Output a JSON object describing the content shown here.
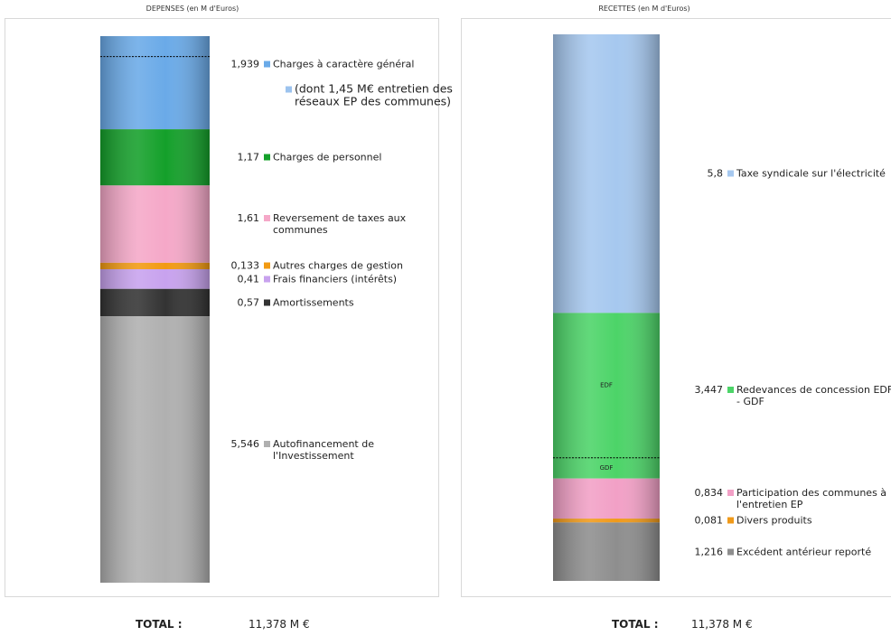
{
  "chart_data": [
    {
      "type": "stacked-bar",
      "title": "DEPENSES (en M d'Euros)",
      "series": [
        {
          "name": "Charges à caractère général",
          "color": "#6aaae8",
          "values": [
            1.939
          ],
          "value_labels": [
            "1,939"
          ],
          "note": "(dont 1,45 M€ entretien des réseaux EP des communes)"
        },
        {
          "name": "Charges de personnel",
          "color": "#14a02a",
          "values": [
            1.17
          ],
          "value_labels": [
            "1,17"
          ]
        },
        {
          "name": "Reversement de taxes aux communes",
          "color": "#f5a8c8",
          "values": [
            1.61
          ],
          "value_labels": [
            "1,61"
          ]
        },
        {
          "name": "Autres charges de gestion",
          "color": "#f29a12",
          "values": [
            0.133
          ],
          "value_labels": [
            "0,133"
          ]
        },
        {
          "name": "Frais financiers (intérêts)",
          "color": "#c8a2ee",
          "values": [
            0.41
          ],
          "value_labels": [
            "0,41"
          ]
        },
        {
          "name": "Amortissements",
          "color": "#333333",
          "values": [
            0.57
          ],
          "value_labels": [
            "0,57"
          ]
        },
        {
          "name": "Autofinancement de l'Investissement",
          "color": "#b0b0b0",
          "values": [
            5.546
          ],
          "value_labels": [
            "5,546"
          ]
        }
      ],
      "total_title": "TOTAL :",
      "total": {
        "value": 11.378,
        "label": "11,378 M €"
      }
    },
    {
      "type": "stacked-bar",
      "title": "RECETTES (en M d'Euros)",
      "series": [
        {
          "name": "Taxe syndicale sur l'électricité",
          "color": "#a6c8ef",
          "values": [
            5.8
          ],
          "value_labels": [
            "5,8"
          ]
        },
        {
          "name": "Redevances de concession EDF - GDF",
          "color": "#4cd468",
          "values": [
            3.447
          ],
          "value_labels": [
            "3,447"
          ],
          "inner_labels": [
            "EDF",
            "GDF"
          ]
        },
        {
          "name": "Participation des communes à l'entretien EP",
          "color": "#f2a0c6",
          "values": [
            0.834
          ],
          "value_labels": [
            "0,834"
          ]
        },
        {
          "name": "Divers produits",
          "color": "#f09a1a",
          "values": [
            0.081
          ],
          "value_labels": [
            "0,081"
          ]
        },
        {
          "name": "Excédent antérieur reporté",
          "color": "#8e8e8e",
          "values": [
            1.216
          ],
          "value_labels": [
            "1,216"
          ]
        }
      ],
      "total_title": "TOTAL :",
      "total": {
        "value": 11.378,
        "label": "11,378 M €"
      }
    }
  ]
}
